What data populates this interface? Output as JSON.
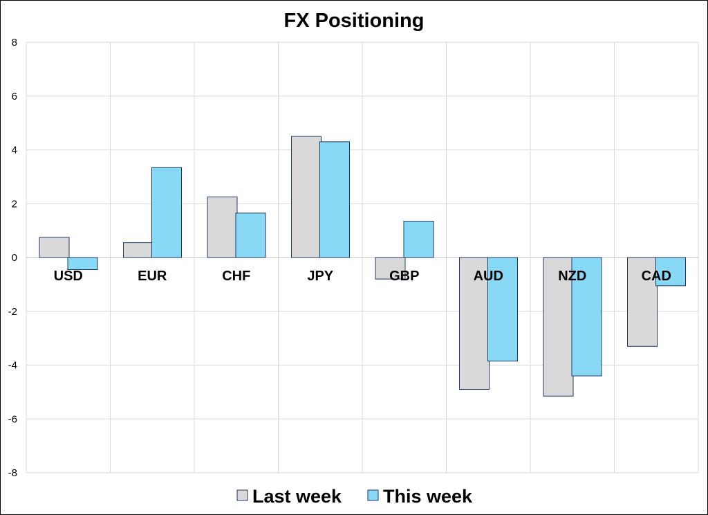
{
  "chart_data": {
    "type": "bar",
    "title": "FX Positioning",
    "xlabel": "",
    "ylabel": "",
    "categories": [
      "USD",
      "EUR",
      "CHF",
      "JPY",
      "GBP",
      "AUD",
      "NZD",
      "CAD"
    ],
    "series": [
      {
        "name": "Last week",
        "color": "#d9d9d9",
        "values": [
          0.75,
          0.55,
          2.25,
          4.5,
          -0.8,
          -4.9,
          -5.15,
          -3.3
        ]
      },
      {
        "name": "This week",
        "color": "#87d9f5",
        "values": [
          -0.45,
          3.35,
          1.65,
          4.3,
          1.35,
          -3.85,
          -4.4,
          -1.05
        ]
      }
    ],
    "ylim": [
      -8,
      8
    ],
    "yticks": [
      "8",
      "6",
      "4",
      "2",
      "0",
      "-2",
      "-4",
      "-6",
      "-8"
    ],
    "grid": true,
    "legend_position": "bottom",
    "bar_outline_color": "#1f3864",
    "grid_color": "#d9d9d9"
  }
}
